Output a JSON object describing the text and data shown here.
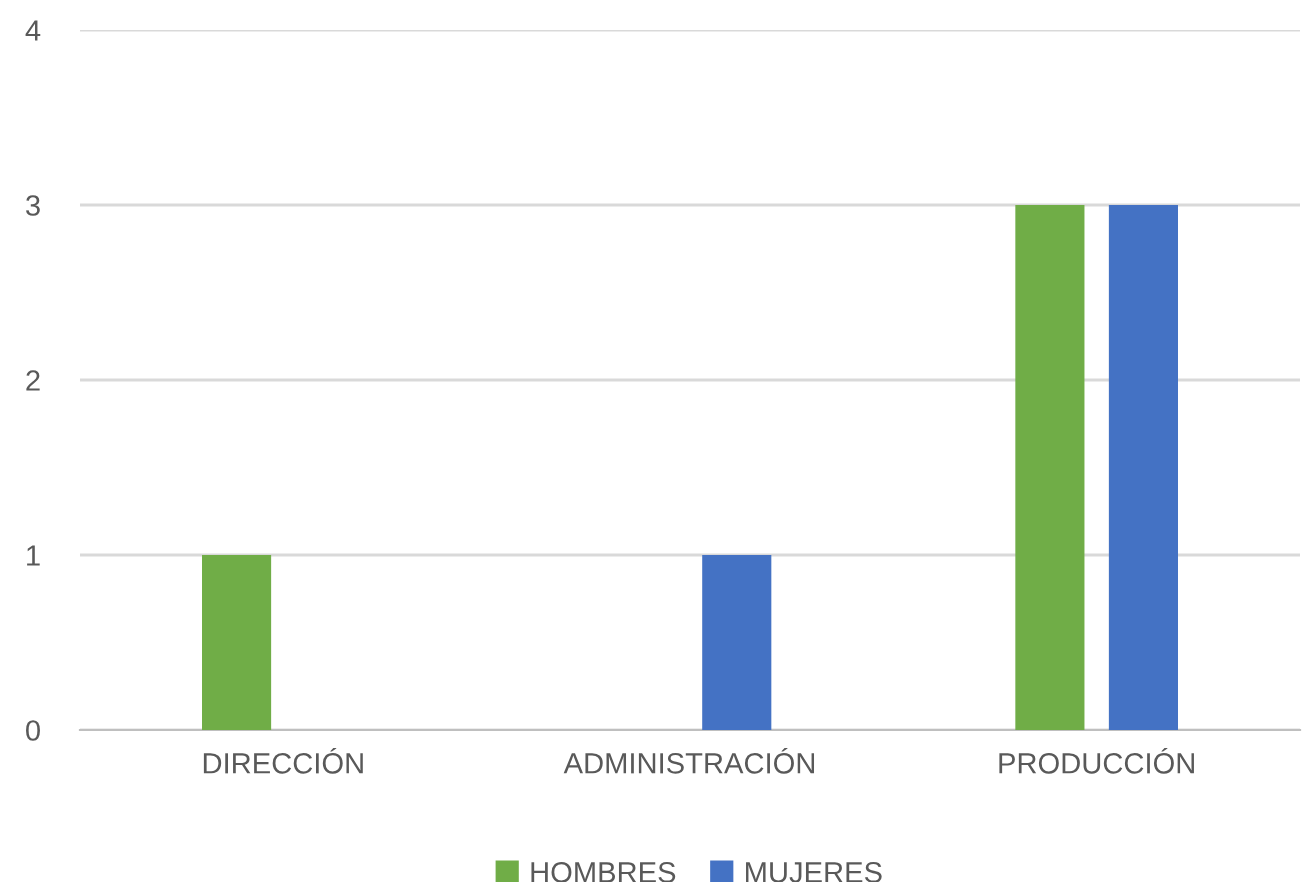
{
  "chart_data": {
    "type": "bar",
    "categories": [
      "DIRECCIÓN",
      "ADMINISTRACIÓN",
      "PRODUCCIÓN"
    ],
    "series": [
      {
        "name": "HOMBRES",
        "color": "#70ad47",
        "values": [
          1,
          0,
          3
        ]
      },
      {
        "name": "MUJERES",
        "color": "#4472c4",
        "values": [
          0,
          1,
          3
        ]
      }
    ],
    "ylim": [
      0,
      4
    ],
    "yticks": [
      0,
      1,
      2,
      3,
      4
    ],
    "grid": "y",
    "legend": "bottom"
  }
}
